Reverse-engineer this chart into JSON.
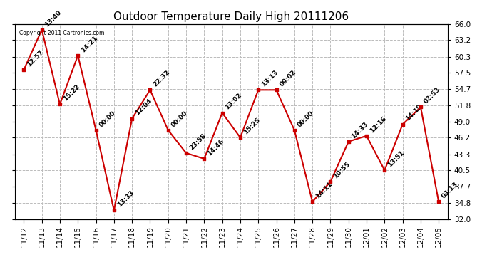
{
  "title": "Outdoor Temperature Daily High 20111206",
  "copyright_text": "Copyright 2011 Cartronics.com",
  "dates": [
    "11/12",
    "11/13",
    "11/14",
    "11/15",
    "11/16",
    "11/17",
    "11/18",
    "11/19",
    "11/20",
    "11/21",
    "11/22",
    "11/23",
    "11/24",
    "11/25",
    "11/26",
    "11/27",
    "11/28",
    "11/29",
    "11/30",
    "12/01",
    "12/02",
    "12/03",
    "12/04",
    "12/05"
  ],
  "values": [
    58.0,
    65.0,
    52.0,
    60.5,
    47.5,
    33.5,
    49.5,
    54.5,
    47.5,
    43.5,
    42.5,
    50.5,
    46.2,
    54.5,
    54.5,
    47.5,
    35.0,
    38.5,
    45.5,
    46.5,
    40.5,
    48.5,
    51.5,
    35.0
  ],
  "labels": [
    "12:57",
    "13:40",
    "15:22",
    "14:21",
    "00:00",
    "13:33",
    "12:04",
    "22:32",
    "00:00",
    "23:58",
    "14:46",
    "13:02",
    "15:25",
    "13:13",
    "09:02",
    "00:00",
    "14:11",
    "10:55",
    "14:33",
    "12:16",
    "13:51",
    "14:19",
    "02:53",
    "03:13"
  ],
  "line_color": "#cc0000",
  "marker_color": "#cc0000",
  "background_color": "#ffffff",
  "grid_color": "#bbbbbb",
  "ylim": [
    32.0,
    66.0
  ],
  "yticks": [
    32.0,
    34.8,
    37.7,
    40.5,
    43.3,
    46.2,
    49.0,
    51.8,
    54.7,
    57.5,
    60.3,
    63.2,
    66.0
  ],
  "title_fontsize": 11,
  "label_fontsize": 6.5,
  "tick_fontsize": 7.5
}
